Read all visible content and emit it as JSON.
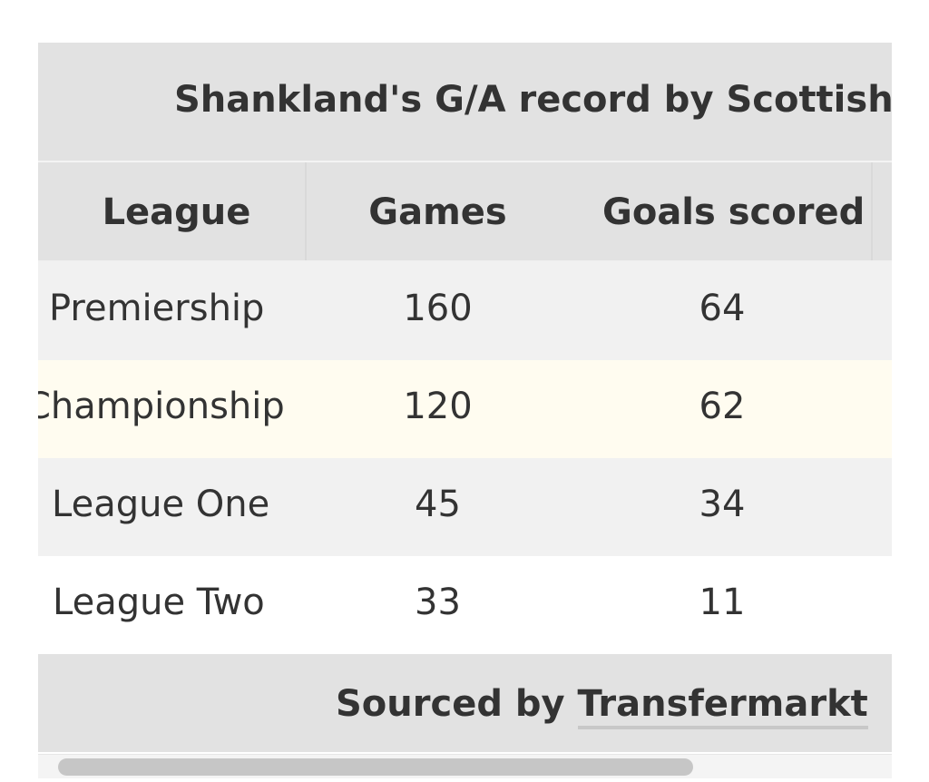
{
  "table": {
    "caption": "Shankland's G/A record by Scottish divisions",
    "headers": {
      "league": "League",
      "games": "Games",
      "goals": "Goals scored"
    },
    "rows": [
      {
        "league": "Premiership",
        "games": "160",
        "goals": "64"
      },
      {
        "league": "Championship",
        "games": "120",
        "goals": "62"
      },
      {
        "league": "League One",
        "games": "45",
        "goals": "34"
      },
      {
        "league": "League Two",
        "games": "33",
        "goals": "11"
      }
    ],
    "footer": {
      "prefix": "Sourced by ",
      "link_label": "Transfermarkt"
    }
  },
  "scrollbar": {
    "horizontal_position": 0
  },
  "colors": {
    "header_bg": "#e2e2e2",
    "row_gray": "#f1f1f1",
    "row_cream": "#fffcf0",
    "row_white": "#ffffff",
    "text": "#333333"
  }
}
